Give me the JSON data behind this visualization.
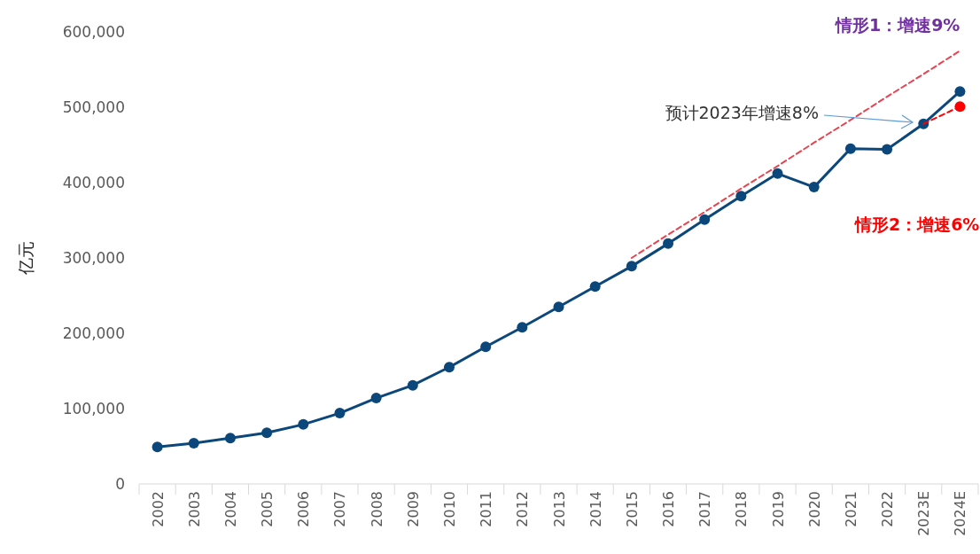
{
  "chart_data": {
    "type": "line",
    "ylabel": "亿元",
    "categories": [
      "2002",
      "2003",
      "2004",
      "2005",
      "2006",
      "2007",
      "2008",
      "2009",
      "2010",
      "2011",
      "2012",
      "2013",
      "2014",
      "2015",
      "2016",
      "2017",
      "2018",
      "2019",
      "2020",
      "2021",
      "2022",
      "2023E",
      "2024E"
    ],
    "ylim": [
      0,
      600000
    ],
    "yticks": [
      0,
      {
        "value": 100000,
        "label": "100,000"
      },
      {
        "value": 200000,
        "label": "200,000"
      },
      {
        "value": 300000,
        "label": "300,000"
      },
      {
        "value": 400000,
        "label": "400,000"
      },
      {
        "value": 500000,
        "label": "500,000"
      },
      {
        "value": 600000,
        "label": "600,000"
      }
    ],
    "marker": "circle",
    "line_style": "solid",
    "grid": false,
    "series": [
      {
        "color": "#0b477a",
        "values": [
          49000,
          54000,
          61000,
          68000,
          79000,
          94000,
          114000,
          131000,
          155000,
          182000,
          208000,
          235000,
          262000,
          289000,
          319000,
          351000,
          382000,
          412000,
          394000,
          445000,
          444000,
          478000,
          521000
        ]
      },
      {
        "name": "情形1：增速9%",
        "type": "line",
        "line_style": "dashed",
        "marker": "none",
        "color": "#e8434f",
        "values": [
          null,
          null,
          null,
          null,
          null,
          null,
          null,
          null,
          null,
          null,
          null,
          null,
          null,
          300000,
          331000,
          361000,
          392000,
          422000,
          453000,
          483000,
          514000,
          544000,
          575000
        ]
      },
      {
        "name": "情形2：增速6%",
        "type": "line",
        "line_style": "dashed",
        "marker": "none",
        "color": "#ff0000",
        "values": [
          null,
          null,
          null,
          null,
          null,
          null,
          null,
          null,
          null,
          null,
          null,
          null,
          null,
          null,
          null,
          null,
          null,
          null,
          null,
          null,
          null,
          478000,
          501000
        ]
      },
      {
        "type": "scatter",
        "marker": "circle",
        "color": "#ff0000",
        "values": [
          null,
          null,
          null,
          null,
          null,
          null,
          null,
          null,
          null,
          null,
          null,
          null,
          null,
          null,
          null,
          null,
          null,
          null,
          null,
          null,
          null,
          null,
          501000
        ]
      }
    ],
    "annotations": [
      "预计2023年增速8%"
    ]
  }
}
